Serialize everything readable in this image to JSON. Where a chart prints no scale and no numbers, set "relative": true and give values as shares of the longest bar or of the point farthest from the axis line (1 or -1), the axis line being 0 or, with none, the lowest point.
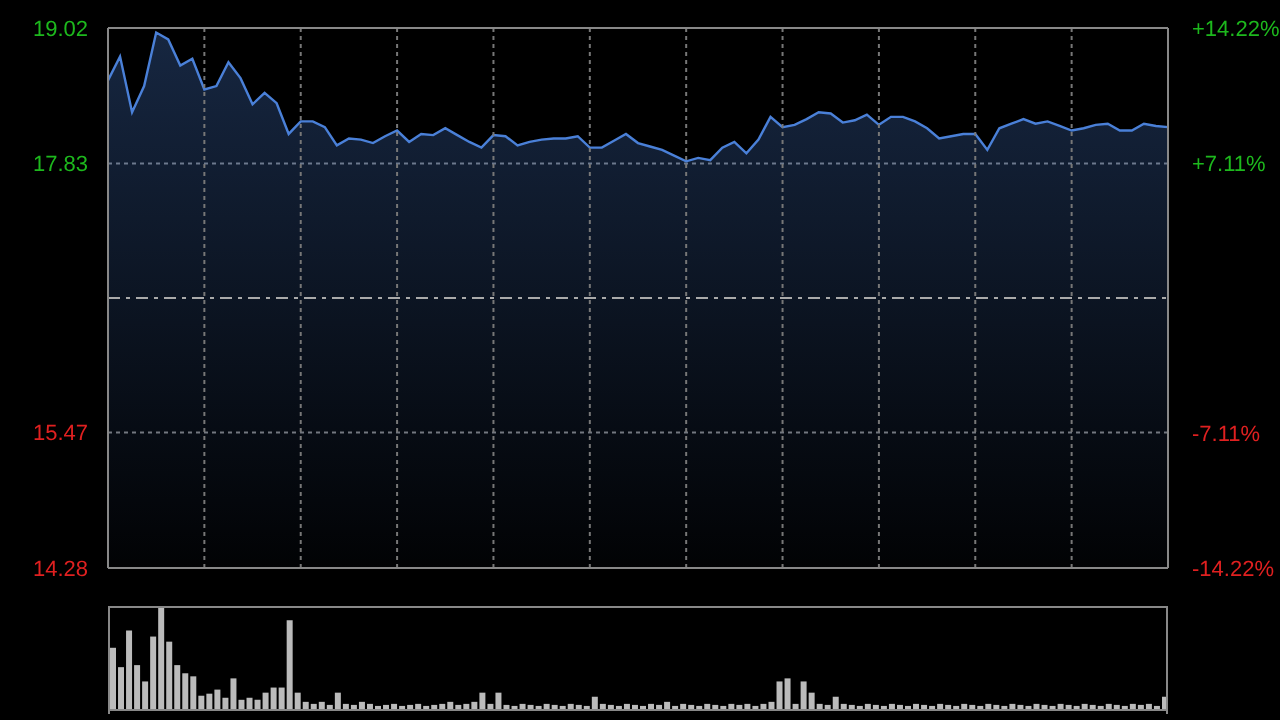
{
  "chart_data": [
    {
      "type": "area",
      "categories": [
        null,
        null,
        null,
        null,
        null,
        null,
        null,
        null,
        null,
        null,
        null,
        null,
        null,
        null,
        null,
        null,
        null,
        null,
        null,
        null,
        null,
        null,
        null,
        null,
        null,
        null,
        null,
        null,
        null,
        null,
        null,
        null,
        null,
        null,
        null,
        null,
        null,
        null,
        null,
        null,
        null,
        null,
        null,
        null,
        null,
        null,
        null,
        null,
        null,
        null,
        null,
        null,
        null,
        null,
        null,
        null,
        null,
        null,
        null,
        null,
        null,
        null,
        null,
        null,
        null,
        null,
        null,
        null,
        null,
        null,
        null,
        null,
        null,
        null,
        null,
        null,
        null,
        null,
        null,
        null,
        null,
        null,
        null,
        null,
        null,
        null,
        null,
        null,
        null
      ],
      "series": [
        {
          "color": "#4a80d8",
          "values": [
            18.56,
            18.77,
            18.28,
            18.51,
            18.98,
            18.92,
            18.69,
            18.75,
            18.48,
            18.51,
            18.72,
            18.58,
            18.35,
            18.45,
            18.36,
            18.09,
            18.2,
            18.2,
            18.15,
            17.99,
            18.05,
            18.04,
            18.01,
            18.07,
            18.12,
            18.02,
            18.09,
            18.08,
            18.14,
            18.08,
            18.02,
            17.97,
            18.08,
            18.07,
            17.99,
            18.02,
            18.04,
            18.05,
            18.05,
            18.07,
            17.97,
            17.97,
            18.03,
            18.09,
            18.01,
            17.98,
            17.95,
            17.9,
            17.85,
            17.88,
            17.86,
            17.97,
            18.02,
            17.92,
            18.04,
            18.24,
            18.15,
            18.17,
            18.22,
            18.28,
            18.27,
            18.19,
            18.21,
            18.26,
            18.17,
            18.24,
            18.24,
            18.2,
            18.14,
            18.05,
            18.07,
            18.09,
            18.09,
            17.95,
            18.14,
            18.18,
            18.22,
            18.18,
            18.2,
            18.16,
            18.12,
            18.14,
            18.17,
            18.18,
            18.12,
            18.12,
            18.18,
            18.16,
            18.15
          ]
        }
      ],
      "ylim": [
        14.28,
        19.02
      ],
      "yticks": [
        14.28,
        15.47,
        17.83,
        19.02
      ],
      "y2lim": [
        -14.22,
        14.22
      ],
      "y2ticks": [
        {
          "value": -14.22,
          "label": "-14.22%"
        },
        {
          "value": -7.11,
          "label": "-7.11%"
        },
        {
          "value": 7.11,
          "label": "+7.11%"
        },
        {
          "value": 14.22,
          "label": "+14.22%"
        }
      ],
      "ref_lines": [
        {
          "axis": "y",
          "value": 16.65,
          "color": "#aaaaaa",
          "line_style": "dashed"
        }
      ],
      "grid": true,
      "tick_labels": "y",
      "legend": false
    },
    {
      "type": "bar",
      "relative": true,
      "tick_labels": false,
      "legend": false,
      "categories": [
        null,
        null,
        null,
        null,
        null,
        null,
        null,
        null,
        null,
        null,
        null,
        null,
        null,
        null,
        null,
        null,
        null,
        null,
        null,
        null,
        null,
        null,
        null,
        null,
        null,
        null,
        null,
        null,
        null,
        null,
        null,
        null,
        null,
        null,
        null,
        null,
        null,
        null,
        null,
        null,
        null,
        null,
        null,
        null,
        null,
        null,
        null,
        null,
        null,
        null,
        null,
        null,
        null,
        null,
        null,
        null,
        null,
        null,
        null,
        null,
        null,
        null,
        null,
        null,
        null,
        null,
        null,
        null,
        null,
        null,
        null,
        null,
        null,
        null,
        null,
        null,
        null,
        null,
        null,
        null,
        null,
        null,
        null,
        null,
        null,
        null,
        null,
        null,
        null,
        null,
        null,
        null,
        null,
        null,
        null,
        null,
        null,
        null,
        null,
        null,
        null,
        null,
        null,
        null,
        null,
        null,
        null,
        null,
        null,
        null,
        null,
        null,
        null,
        null,
        null,
        null,
        null,
        null,
        null,
        null,
        null,
        null,
        null,
        null,
        null,
        null,
        null,
        null,
        null,
        null,
        null,
        null
      ],
      "series": [
        {
          "color": "#bbbbbb",
          "values": [
            0.61,
            0.42,
            0.78,
            0.44,
            0.28,
            0.72,
            1,
            0.67,
            0.44,
            0.36,
            0.33,
            0.14,
            0.16,
            0.2,
            0.12,
            0.31,
            0.1,
            0.12,
            0.1,
            0.17,
            0.22,
            0.22,
            0.88,
            0.17,
            0.08,
            0.06,
            0.08,
            0.05,
            0.17,
            0.06,
            0.05,
            0.08,
            0.06,
            0.04,
            0.05,
            0.06,
            0.04,
            0.05,
            0.06,
            0.04,
            0.05,
            0.06,
            0.08,
            0.05,
            0.06,
            0.08,
            0.17,
            0.06,
            0.17,
            0.05,
            0.04,
            0.06,
            0.05,
            0.04,
            0.06,
            0.05,
            0.04,
            0.06,
            0.05,
            0.04,
            0.13,
            0.06,
            0.05,
            0.04,
            0.06,
            0.05,
            0.04,
            0.06,
            0.05,
            0.08,
            0.04,
            0.06,
            0.05,
            0.04,
            0.06,
            0.05,
            0.04,
            0.06,
            0.05,
            0.06,
            0.04,
            0.06,
            0.08,
            0.28,
            0.31,
            0.06,
            0.28,
            0.17,
            0.06,
            0.05,
            0.13,
            0.06,
            0.05,
            0.04,
            0.06,
            0.05,
            0.04,
            0.06,
            0.05,
            0.04,
            0.06,
            0.05,
            0.04,
            0.06,
            0.05,
            0.04,
            0.06,
            0.05,
            0.04,
            0.06,
            0.05,
            0.04,
            0.06,
            0.05,
            0.04,
            0.06,
            0.05,
            0.04,
            0.06,
            0.05,
            0.04,
            0.06,
            0.05,
            0.04,
            0.06,
            0.05,
            0.04,
            0.06,
            0.05,
            0.06,
            0.04,
            0.13
          ]
        }
      ]
    }
  ]
}
